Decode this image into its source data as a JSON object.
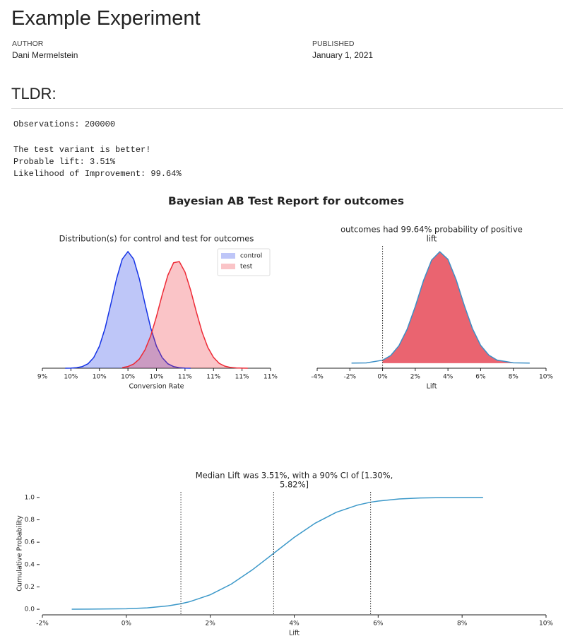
{
  "header": {
    "title": "Example Experiment",
    "author_label": "AUTHOR",
    "author": "Dani Mermelstein",
    "published_label": "PUBLISHED",
    "published": "January 1, 2021"
  },
  "section": {
    "heading": "TLDR:"
  },
  "output": {
    "observations": "Observations: 200000",
    "result": [
      "The test variant is better!",
      "Probable lift: 3.51%",
      "Likelihood of Improvement: 99.64%"
    ]
  },
  "figure": {
    "title": "Bayesian AB Test Report for outcomes"
  },
  "chart_data": [
    {
      "type": "area",
      "title": [
        "Distribution(s) for control and test for outcomes"
      ],
      "xlabel": "Conversion Rate",
      "xlim": [
        9.25,
        11.25
      ],
      "xticks": [
        {
          "value": 9.25,
          "label": "9%"
        },
        {
          "value": 9.5,
          "label": "10%"
        },
        {
          "value": 9.75,
          "label": "10%"
        },
        {
          "value": 10,
          "label": "10%"
        },
        {
          "value": 10.25,
          "label": "10%"
        },
        {
          "value": 10.5,
          "label": "11%"
        },
        {
          "value": 10.75,
          "label": "11%"
        },
        {
          "value": 11,
          "label": "11%"
        },
        {
          "value": 11.25,
          "label": "11%"
        }
      ],
      "ylim": [
        0,
        3.05
      ],
      "legend": "upper right",
      "fill_opacity": 0.28,
      "series": [
        {
          "name": "control",
          "color": "#1533e6",
          "x": [
            9.45,
            9.5,
            9.55,
            9.6,
            9.65,
            9.7,
            9.75,
            9.8,
            9.85,
            9.9,
            9.95,
            10,
            10.05,
            10.1,
            10.15,
            10.2,
            10.25,
            10.3,
            10.35,
            10.4,
            10.45,
            10.5,
            10.55
          ],
          "values": [
            0,
            0.003,
            0.013,
            0.041,
            0.111,
            0.265,
            0.55,
            1.0,
            1.6,
            2.23,
            2.72,
            2.91,
            2.72,
            2.23,
            1.6,
            1.0,
            0.55,
            0.265,
            0.111,
            0.041,
            0.013,
            0.003,
            0
          ]
        },
        {
          "name": "test",
          "color": "#ee2a36",
          "x": [
            9.95,
            10,
            10.05,
            10.1,
            10.15,
            10.2,
            10.25,
            10.3,
            10.35,
            10.4,
            10.45,
            10.5,
            10.55,
            10.6,
            10.65,
            10.7,
            10.75,
            10.8,
            10.85,
            10.9,
            10.95,
            11,
            11.05
          ],
          "values": [
            0.015,
            0.042,
            0.104,
            0.23,
            0.46,
            0.81,
            1.29,
            1.83,
            2.32,
            2.63,
            2.66,
            2.4,
            1.94,
            1.4,
            0.9,
            0.52,
            0.27,
            0.12,
            0.05,
            0.019,
            0.007,
            0.002,
            0
          ]
        }
      ]
    },
    {
      "type": "area",
      "title": [
        "outcomes had 99.64% probability of positive",
        "lift"
      ],
      "xlabel": "Lift",
      "xlim": [
        -4,
        10
      ],
      "xticks": [
        {
          "value": -4,
          "label": "-4%"
        },
        {
          "value": -2,
          "label": "-2%"
        },
        {
          "value": 0,
          "label": "0%"
        },
        {
          "value": 2,
          "label": "2%"
        },
        {
          "value": 4,
          "label": "4%"
        },
        {
          "value": 6,
          "label": "6%"
        },
        {
          "value": 8,
          "label": "8%"
        },
        {
          "value": 10,
          "label": "10%"
        }
      ],
      "ylim": [
        -0.014,
        0.323
      ],
      "vlines": [
        0
      ],
      "fill": "right_of_vline",
      "series": [
        {
          "color": "#3d8fc6",
          "fill_color": "#ea6470",
          "x": [
            -1.9,
            -1,
            0,
            0.5,
            1,
            1.5,
            2,
            2.5,
            3,
            3.5,
            4,
            4.5,
            5,
            5.5,
            6,
            6.5,
            7,
            8,
            9
          ],
          "values": [
            5e-05,
            0.0007,
            0.008,
            0.021,
            0.048,
            0.093,
            0.156,
            0.227,
            0.284,
            0.307,
            0.286,
            0.23,
            0.159,
            0.095,
            0.049,
            0.022,
            0.0084,
            0.0008,
            4e-05
          ]
        }
      ]
    },
    {
      "type": "line",
      "title": [
        "Median Lift was 3.51%, with a 90% CI of [1.30%,",
        "5.82%]"
      ],
      "xlabel": "Lift",
      "ylabel": "Cumulative Probability",
      "xlim": [
        -2,
        10
      ],
      "xticks": [
        {
          "value": -2,
          "label": "-2%"
        },
        {
          "value": 0,
          "label": "0%"
        },
        {
          "value": 2,
          "label": "2%"
        },
        {
          "value": 4,
          "label": "4%"
        },
        {
          "value": 6,
          "label": "6%"
        },
        {
          "value": 8,
          "label": "8%"
        },
        {
          "value": 10,
          "label": "10%"
        }
      ],
      "ylim": [
        -0.05,
        1.05
      ],
      "yticks": [
        {
          "value": 0,
          "label": "0.0"
        },
        0.2,
        0.4,
        0.6,
        0.8,
        {
          "value": 1,
          "label": "1.0"
        }
      ],
      "vlines": [
        1.3,
        3.51,
        5.82
      ],
      "series": [
        {
          "color": "#3b98c9",
          "x": [
            -1.3,
            0,
            0.5,
            1,
            1.3,
            1.5,
            2,
            2.5,
            3,
            3.51,
            4,
            4.5,
            5,
            5.5,
            5.82,
            6,
            6.5,
            7,
            7.5,
            8,
            8.5
          ],
          "values": [
            0.0002,
            0.0044,
            0.0124,
            0.0305,
            0.0496,
            0.0668,
            0.13,
            0.225,
            0.352,
            0.5,
            0.643,
            0.77,
            0.867,
            0.931,
            0.958,
            0.968,
            0.987,
            0.9954,
            0.9985,
            0.9996,
            0.9999
          ]
        }
      ]
    }
  ]
}
